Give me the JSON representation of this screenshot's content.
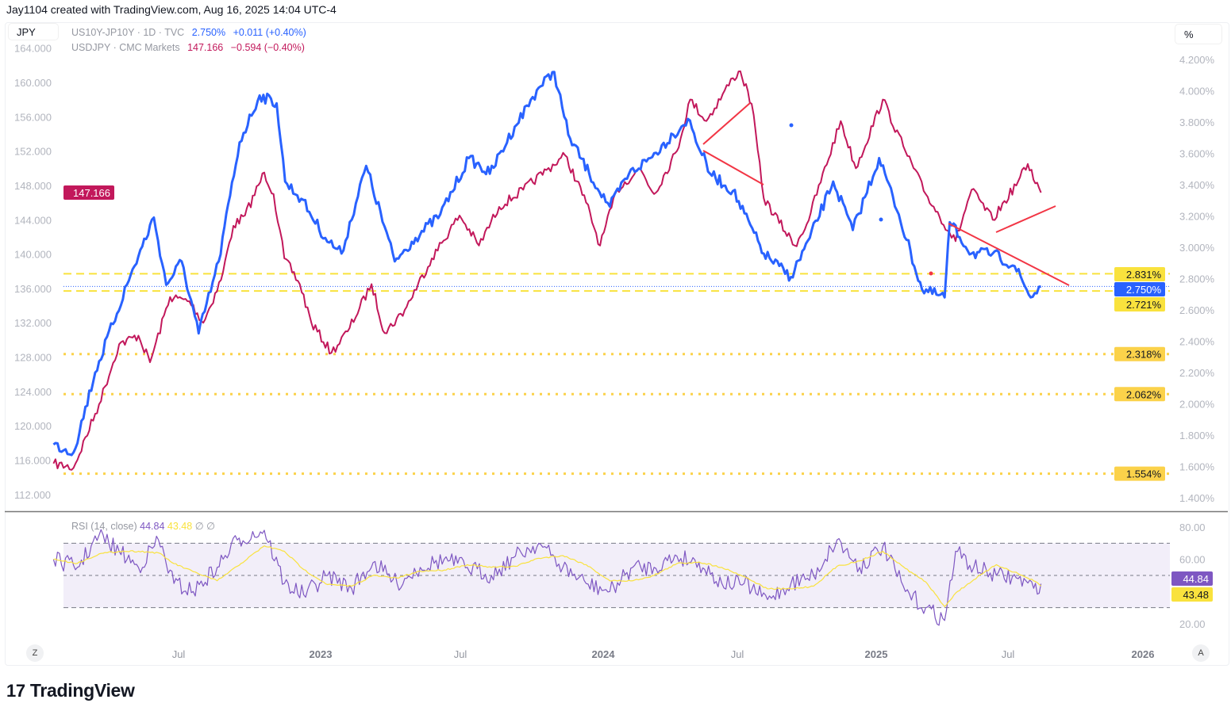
{
  "header": {
    "credit": "Jay1104 created with TradingView.com, Aug 16, 2025 14:04 UTC-4"
  },
  "toolbar": {
    "currency": "JPY",
    "scale_unit": "%",
    "auto_button": "A",
    "zoom_button": "Z"
  },
  "legend": {
    "series1": {
      "symbol": "US10Y-JP10Y · 1D · TVC",
      "value": "2.750%",
      "change": "+0.011 (+0.40%)",
      "color": "#2962ff"
    },
    "series2": {
      "symbol": "USDJPY · CMC Markets",
      "value": "147.166",
      "change": "−0.594 (−0.40%)",
      "color": "#c2185b"
    }
  },
  "rsi_legend": {
    "label": "RSI (14, close)",
    "rsi": "44.84",
    "ma": "43.48",
    "na1": "∅",
    "na2": "∅"
  },
  "logo": {
    "text": "TradingView",
    "mark": "17"
  },
  "chart_data": [
    {
      "type": "line",
      "x_ticks": [
        "Jul",
        "2023",
        "Jul",
        "2024",
        "Jul",
        "2025",
        "Jul",
        "2026"
      ],
      "left_axis": {
        "ticks": [
          "164.000",
          "160.000",
          "156.000",
          "152.000",
          "148.000",
          "144.000",
          "140.000",
          "136.000",
          "132.000",
          "128.000",
          "124.000",
          "120.000",
          "116.000",
          "112.000"
        ],
        "ylim": [
          112,
          164
        ]
      },
      "right_axis": {
        "ticks": [
          "4.200%",
          "4.000%",
          "3.800%",
          "3.600%",
          "3.400%",
          "3.200%",
          "3.000%",
          "2.800%",
          "2.600%",
          "2.400%",
          "2.200%",
          "2.000%",
          "1.800%",
          "1.600%",
          "1.400%"
        ],
        "ylim": [
          1.4,
          4.2
        ]
      },
      "price_labels": {
        "usdjpy": "147.166",
        "spread": "2.750%"
      },
      "horizontal_levels": [
        {
          "value": 2.831,
          "label": "2.831%",
          "style": "dashed",
          "color": "#f9e23d"
        },
        {
          "value": 2.721,
          "label": "2.721%",
          "style": "dashed",
          "color": "#f9e23d"
        },
        {
          "value": 2.318,
          "label": "2.318%",
          "style": "dotted",
          "color": "#fbd24a"
        },
        {
          "value": 2.062,
          "label": "2.062%",
          "style": "dotted",
          "color": "#fbd24a"
        },
        {
          "value": 1.554,
          "label": "1.554%",
          "style": "dotted",
          "color": "#fbd24a"
        }
      ],
      "series": [
        {
          "name": "USDJPY",
          "axis": "left",
          "color": "#c2185b",
          "points": [
            [
              "2022-01-20",
              115.6
            ],
            [
              "2022-02-15",
              115.1
            ],
            [
              "2022-03-20",
              122.5
            ],
            [
              "2022-04-15",
              129.5
            ],
            [
              "2022-05-10",
              130.5
            ],
            [
              "2022-05-25",
              127.4
            ],
            [
              "2022-06-20",
              135.0
            ],
            [
              "2022-07-15",
              134.5
            ],
            [
              "2022-08-02",
              132.0
            ],
            [
              "2022-08-25",
              137.0
            ],
            [
              "2022-09-10",
              143.3
            ],
            [
              "2022-09-25",
              144.5
            ],
            [
              "2022-10-20",
              149.5
            ],
            [
              "2022-11-01",
              147.0
            ],
            [
              "2022-11-15",
              139.5
            ],
            [
              "2022-12-05",
              136.5
            ],
            [
              "2022-12-20",
              132.0
            ],
            [
              "2023-01-15",
              128.5
            ],
            [
              "2023-02-05",
              131.0
            ],
            [
              "2023-03-08",
              136.5
            ],
            [
              "2023-03-25",
              130.8
            ],
            [
              "2023-04-20",
              133.5
            ],
            [
              "2023-05-25",
              139.5
            ],
            [
              "2023-06-30",
              144.5
            ],
            [
              "2023-07-25",
              141.0
            ],
            [
              "2023-08-20",
              145.5
            ],
            [
              "2023-09-20",
              147.5
            ],
            [
              "2023-10-20",
              149.8
            ],
            [
              "2023-11-13",
              151.5
            ],
            [
              "2023-12-10",
              146.0
            ],
            [
              "2023-12-28",
              141.0
            ],
            [
              "2024-01-20",
              147.5
            ],
            [
              "2024-02-20",
              150.0
            ],
            [
              "2024-03-10",
              147.0
            ],
            [
              "2024-04-10",
              152.0
            ],
            [
              "2024-04-28",
              158.0
            ],
            [
              "2024-05-20",
              155.5
            ],
            [
              "2024-06-25",
              160.5
            ],
            [
              "2024-07-05",
              161.3
            ],
            [
              "2024-07-20",
              157.5
            ],
            [
              "2024-08-05",
              146.5
            ],
            [
              "2024-09-15",
              141.0
            ],
            [
              "2024-10-01",
              143.5
            ],
            [
              "2024-11-15",
              155.5
            ],
            [
              "2024-12-05",
              150.0
            ],
            [
              "2025-01-10",
              158.0
            ],
            [
              "2025-02-10",
              152.0
            ],
            [
              "2025-03-10",
              147.0
            ],
            [
              "2025-04-20",
              141.5
            ],
            [
              "2025-05-12",
              147.5
            ],
            [
              "2025-06-10",
              144.0
            ],
            [
              "2025-07-15",
              148.5
            ],
            [
              "2025-07-28",
              150.5
            ],
            [
              "2025-08-15",
              147.166
            ]
          ]
        },
        {
          "name": "US10Y-JP10Y",
          "axis": "right",
          "color": "#2962ff",
          "points": [
            [
              "2022-01-20",
              1.74
            ],
            [
              "2022-02-15",
              1.69
            ],
            [
              "2022-03-15",
              2.2
            ],
            [
              "2022-04-25",
              2.76
            ],
            [
              "2022-05-30",
              3.19
            ],
            [
              "2022-06-15",
              2.76
            ],
            [
              "2022-07-05",
              2.91
            ],
            [
              "2022-07-27",
              2.45
            ],
            [
              "2022-08-22",
              2.91
            ],
            [
              "2022-09-18",
              3.67
            ],
            [
              "2022-10-14",
              3.97
            ],
            [
              "2022-11-05",
              3.92
            ],
            [
              "2022-11-16",
              3.42
            ],
            [
              "2022-12-07",
              3.31
            ],
            [
              "2023-01-07",
              3.06
            ],
            [
              "2023-01-28",
              2.96
            ],
            [
              "2023-03-01",
              3.52
            ],
            [
              "2023-04-07",
              2.91
            ],
            [
              "2023-05-04",
              3.06
            ],
            [
              "2023-06-05",
              3.21
            ],
            [
              "2023-07-12",
              3.57
            ],
            [
              "2023-08-08",
              3.47
            ],
            [
              "2023-09-09",
              3.77
            ],
            [
              "2023-10-10",
              4.02
            ],
            [
              "2023-10-30",
              4.12
            ],
            [
              "2023-11-17",
              3.72
            ],
            [
              "2023-12-14",
              3.47
            ],
            [
              "2024-01-10",
              3.26
            ],
            [
              "2024-02-05",
              3.47
            ],
            [
              "2024-03-05",
              3.57
            ],
            [
              "2024-04-05",
              3.72
            ],
            [
              "2024-04-25",
              3.82
            ],
            [
              "2024-05-25",
              3.47
            ],
            [
              "2024-06-25",
              3.36
            ],
            [
              "2024-08-05",
              2.96
            ],
            [
              "2024-09-10",
              2.81
            ],
            [
              "2024-10-05",
              3.06
            ],
            [
              "2024-11-05",
              3.42
            ],
            [
              "2024-12-01",
              3.11
            ],
            [
              "2025-01-05",
              3.57
            ],
            [
              "2025-02-01",
              3.21
            ],
            [
              "2025-03-05",
              2.73
            ],
            [
              "2025-04-05",
              2.68
            ],
            [
              "2025-04-12",
              3.16
            ],
            [
              "2025-05-12",
              2.96
            ],
            [
              "2025-06-10",
              2.96
            ],
            [
              "2025-07-10",
              2.88
            ],
            [
              "2025-08-01",
              2.68
            ],
            [
              "2025-08-15",
              2.75
            ]
          ]
        }
      ]
    },
    {
      "type": "line",
      "title": "RSI (14, close)",
      "right_axis": {
        "ticks": [
          "80.00",
          "60.00",
          "20.00"
        ],
        "ylim": [
          16,
          84
        ]
      },
      "bands": {
        "upper": 70,
        "middle": 50,
        "lower": 30
      },
      "current": {
        "rsi": "44.84",
        "ma": "43.48"
      },
      "series": [
        {
          "name": "RSI",
          "color": "#7e57c2",
          "points": [
            [
              "2022-01-20",
              60
            ],
            [
              "2022-02-20",
              55
            ],
            [
              "2022-03-20",
              75
            ],
            [
              "2022-04-15",
              65
            ],
            [
              "2022-05-10",
              55
            ],
            [
              "2022-06-05",
              72
            ],
            [
              "2022-06-25",
              45
            ],
            [
              "2022-07-20",
              40
            ],
            [
              "2022-08-20",
              55
            ],
            [
              "2022-09-15",
              72
            ],
            [
              "2022-10-20",
              78
            ],
            [
              "2022-11-15",
              45
            ],
            [
              "2022-12-10",
              38
            ],
            [
              "2023-01-10",
              50
            ],
            [
              "2023-02-10",
              42
            ],
            [
              "2023-03-10",
              58
            ],
            [
              "2023-04-10",
              45
            ],
            [
              "2023-05-10",
              55
            ],
            [
              "2023-06-10",
              60
            ],
            [
              "2023-07-10",
              55
            ],
            [
              "2023-08-10",
              50
            ],
            [
              "2023-09-10",
              62
            ],
            [
              "2023-10-10",
              70
            ],
            [
              "2023-11-10",
              55
            ],
            [
              "2023-12-10",
              45
            ],
            [
              "2024-01-10",
              40
            ],
            [
              "2024-02-10",
              55
            ],
            [
              "2024-03-10",
              55
            ],
            [
              "2024-04-10",
              62
            ],
            [
              "2024-05-10",
              58
            ],
            [
              "2024-06-10",
              45
            ],
            [
              "2024-07-10",
              45
            ],
            [
              "2024-08-10",
              35
            ],
            [
              "2024-09-10",
              45
            ],
            [
              "2024-10-10",
              50
            ],
            [
              "2024-11-10",
              72
            ],
            [
              "2024-12-10",
              55
            ],
            [
              "2025-01-10",
              68
            ],
            [
              "2025-02-10",
              40
            ],
            [
              "2025-03-10",
              30
            ],
            [
              "2025-04-05",
              22
            ],
            [
              "2025-04-20",
              65
            ],
            [
              "2025-05-15",
              55
            ],
            [
              "2025-06-15",
              50
            ],
            [
              "2025-07-15",
              48
            ],
            [
              "2025-08-05",
              42
            ],
            [
              "2025-08-15",
              44.84
            ]
          ]
        }
      ]
    }
  ]
}
